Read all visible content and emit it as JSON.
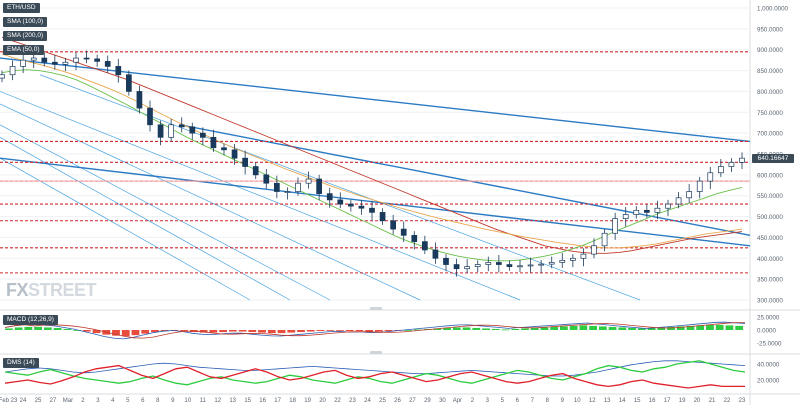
{
  "symbol": "ETH/USD",
  "legend": [
    "SMA (100,0)",
    "SMA (200,0)",
    "EMA (50,0)"
  ],
  "current_price_label": "640.16647",
  "watermark": "FXSTREET",
  "indicators": {
    "macd_label": "MACD (12,26,9)",
    "dms_label": "DMS (14)"
  },
  "y_ticks": [
    {
      "v": 1000,
      "label": "1,000.0000"
    },
    {
      "v": 950,
      "label": "950.0000"
    },
    {
      "v": 900,
      "label": "900.0000"
    },
    {
      "v": 850,
      "label": "850.0000"
    },
    {
      "v": 800,
      "label": "800.0000"
    },
    {
      "v": 750,
      "label": "750.0000"
    },
    {
      "v": 700,
      "label": "700.0000"
    },
    {
      "v": 650,
      "label": "650.0000"
    },
    {
      "v": 600,
      "label": "600.0000"
    },
    {
      "v": 550,
      "label": "550.0000"
    },
    {
      "v": 500,
      "label": "500.0000"
    },
    {
      "v": 450,
      "label": "450.0000"
    },
    {
      "v": 400,
      "label": "400.0000"
    },
    {
      "v": 350,
      "label": "350.0000"
    },
    {
      "v": 300,
      "label": "300.0000"
    }
  ],
  "macd_ticks": [
    {
      "v": 25,
      "label": "25.0000"
    },
    {
      "v": 0,
      "label": "0.0000"
    },
    {
      "v": -25,
      "label": "-25.0000"
    }
  ],
  "dms_ticks": [
    {
      "v": 40,
      "label": "40.0000"
    },
    {
      "v": 20,
      "label": "20.0000"
    }
  ],
  "x_ticks": [
    "Feb 23",
    "24",
    "25",
    "27",
    "Mar",
    "2",
    "3",
    "4",
    "5",
    "6",
    "8",
    "9",
    "10",
    "11",
    "12",
    "13",
    "15",
    "16",
    "17",
    "18",
    "19",
    "20",
    "22",
    "23",
    "24",
    "25",
    "26",
    "27",
    "29",
    "30",
    "Apr",
    "2",
    "3",
    "5",
    "6",
    "7",
    "8",
    "9",
    "10",
    "12",
    "13",
    "14",
    "15",
    "16",
    "17",
    "19",
    "20",
    "21",
    "22",
    "23"
  ],
  "colors": {
    "candle_up": "#1a3a5c",
    "candle_down": "#1a3a5c",
    "sma100": "#e8a64c",
    "sma200": "#c0392b",
    "ema50": "#6abf4b",
    "trendline": "#2b7bc4",
    "channel": "#4aa3df",
    "hline": "#d0272f",
    "tag": "#3b4a57",
    "macd_pos": "#2ecc40",
    "macd_neg": "#e74c3c",
    "dms_plus": "#2ecc40",
    "dms_minus": "#e0202a",
    "adx": "#2b5fb5"
  },
  "chart_data": {
    "type": "candlestick",
    "title": "ETH/USD",
    "ylim": [
      290,
      1010
    ],
    "support_resistance_levels": [
      895,
      680,
      630,
      585,
      530,
      490,
      425,
      365
    ],
    "close_series": [
      840,
      860,
      875,
      880,
      870,
      865,
      870,
      880,
      878,
      872,
      860,
      840,
      800,
      760,
      720,
      690,
      720,
      715,
      700,
      690,
      665,
      660,
      640,
      620,
      600,
      580,
      560,
      560,
      580,
      590,
      555,
      540,
      530,
      525,
      520,
      510,
      490,
      470,
      455,
      440,
      420,
      400,
      385,
      375,
      380,
      385,
      390,
      385,
      380,
      382,
      384,
      386,
      390,
      395,
      400,
      410,
      430,
      460,
      495,
      505,
      515,
      510,
      520,
      530,
      545,
      560,
      585,
      605,
      620,
      630,
      640
    ],
    "sma100_series": [
      890,
      880,
      872,
      865,
      857,
      848,
      838,
      826,
      815,
      803,
      790,
      775,
      760,
      745,
      730,
      716,
      702,
      688,
      675,
      662,
      650,
      638,
      626,
      614,
      603,
      592,
      581,
      570,
      560,
      550,
      541,
      532,
      523,
      515,
      507,
      499,
      492,
      485,
      478,
      471,
      465,
      459,
      453,
      448,
      443,
      438,
      434,
      430,
      427,
      425,
      425,
      427,
      430,
      434,
      440,
      446,
      452,
      458,
      462,
      466,
      470
    ],
    "sma200_series": [
      930,
      920,
      910,
      900,
      890,
      880,
      870,
      860,
      850,
      840,
      830,
      818,
      806,
      794,
      782,
      770,
      758,
      746,
      734,
      722,
      710,
      698,
      686,
      674,
      662,
      650,
      638,
      626,
      614,
      602,
      590,
      578,
      566,
      554,
      542,
      530,
      518,
      506,
      494,
      482,
      470,
      460,
      450,
      440,
      430,
      424,
      418,
      414,
      412,
      412,
      414,
      418,
      424,
      430,
      436,
      442,
      448,
      452,
      456,
      460,
      464
    ],
    "ema50_series": [
      845,
      850,
      852,
      850,
      845,
      838,
      828,
      815,
      800,
      785,
      770,
      754,
      738,
      722,
      706,
      690,
      676,
      662,
      648,
      634,
      620,
      606,
      592,
      578,
      564,
      550,
      536,
      522,
      508,
      494,
      480,
      466,
      452,
      440,
      430,
      420,
      412,
      405,
      400,
      396,
      394,
      394,
      396,
      400,
      405,
      412,
      420,
      430,
      442,
      455,
      468,
      480,
      492,
      505,
      515,
      525,
      535,
      545,
      555,
      563,
      570
    ],
    "macd_hist": [
      3,
      5,
      6,
      6,
      5,
      4,
      2,
      0,
      -3,
      -6,
      -9,
      -11,
      -12,
      -10,
      -7,
      -4,
      -2,
      -1,
      -2,
      -4,
      -5,
      -5,
      -4,
      -3,
      -3,
      -4,
      -5,
      -6,
      -6,
      -5,
      -4,
      -3,
      -2,
      -1,
      -1,
      -2,
      -2,
      -3,
      -3,
      -2,
      -1,
      0,
      1,
      2,
      3,
      4,
      5,
      5,
      4,
      3,
      2,
      1,
      2,
      3,
      4,
      5,
      6,
      7,
      8,
      9,
      8,
      7,
      6,
      5,
      4,
      3,
      4,
      5,
      6,
      7,
      8,
      9,
      10,
      10,
      9,
      8
    ],
    "dms_plus": [
      30,
      28,
      26,
      30,
      33,
      29,
      25,
      22,
      20,
      18,
      16,
      18,
      22,
      25,
      20,
      16,
      14,
      18,
      22,
      24,
      20,
      18,
      16,
      18,
      22,
      26,
      24,
      20,
      18,
      16,
      20,
      24,
      22,
      18,
      16,
      20,
      24,
      28,
      26,
      22,
      18,
      16,
      20,
      24,
      28,
      32,
      30,
      26,
      22,
      20,
      24,
      28,
      34,
      38,
      36,
      32,
      30,
      34,
      36,
      40,
      42,
      44,
      40,
      36,
      32,
      30
    ],
    "dms_minus": [
      16,
      18,
      20,
      17,
      15,
      19,
      24,
      30,
      34,
      36,
      38,
      32,
      26,
      22,
      28,
      34,
      36,
      30,
      24,
      22,
      26,
      30,
      34,
      30,
      24,
      20,
      22,
      26,
      30,
      32,
      26,
      22,
      24,
      28,
      30,
      26,
      22,
      18,
      20,
      24,
      28,
      30,
      26,
      22,
      18,
      16,
      18,
      22,
      26,
      28,
      22,
      18,
      14,
      12,
      14,
      18,
      20,
      16,
      14,
      12,
      10,
      12,
      14,
      12,
      12,
      12
    ],
    "adx": [
      30,
      32,
      34,
      35,
      34,
      32,
      30,
      29,
      30,
      32,
      34,
      36,
      38,
      40,
      41,
      40,
      38,
      36,
      35,
      34,
      33,
      32,
      32,
      33,
      34,
      35,
      36,
      37,
      36,
      35,
      34,
      33,
      32,
      31,
      30,
      29,
      28,
      28,
      29,
      30,
      31,
      32,
      31,
      30,
      29,
      28,
      27,
      26,
      25,
      25,
      26,
      28,
      30,
      33,
      36,
      39,
      41,
      43,
      44,
      44,
      43,
      42,
      41,
      40,
      39,
      38
    ]
  }
}
